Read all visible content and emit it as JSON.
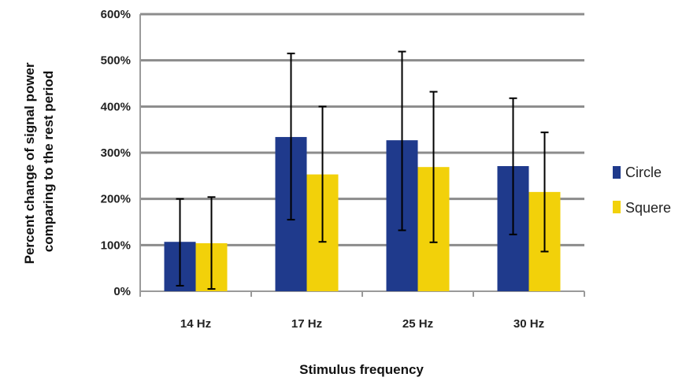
{
  "chart_data": {
    "type": "bar",
    "title": "",
    "xlabel": "Stimulus frequency",
    "ylabel": "Percent change of signal power comparing to the rest period",
    "ylabel_lines": [
      "Percent change of signal power",
      "comparing to the rest period"
    ],
    "categories": [
      "14 Hz",
      "17 Hz",
      "25 Hz",
      "30 Hz"
    ],
    "ylim": [
      0,
      600
    ],
    "yticks": [
      0,
      100,
      200,
      300,
      400,
      500,
      600
    ],
    "ytick_labels": [
      "0%",
      "100%",
      "200%",
      "300%",
      "400%",
      "500%",
      "600%"
    ],
    "grid": "horizontal",
    "legend_position": "right",
    "series": [
      {
        "name": "Circle",
        "color": "#1f3a8c",
        "values": [
          107,
          334,
          327,
          271
        ],
        "error_low": [
          12,
          155,
          132,
          123
        ],
        "error_high": [
          200,
          515,
          519,
          418
        ]
      },
      {
        "name": "Squere",
        "color": "#f2d10a",
        "values": [
          104,
          253,
          269,
          215
        ],
        "error_low": [
          5,
          107,
          106,
          86
        ],
        "error_high": [
          204,
          400,
          432,
          344
        ]
      }
    ]
  }
}
